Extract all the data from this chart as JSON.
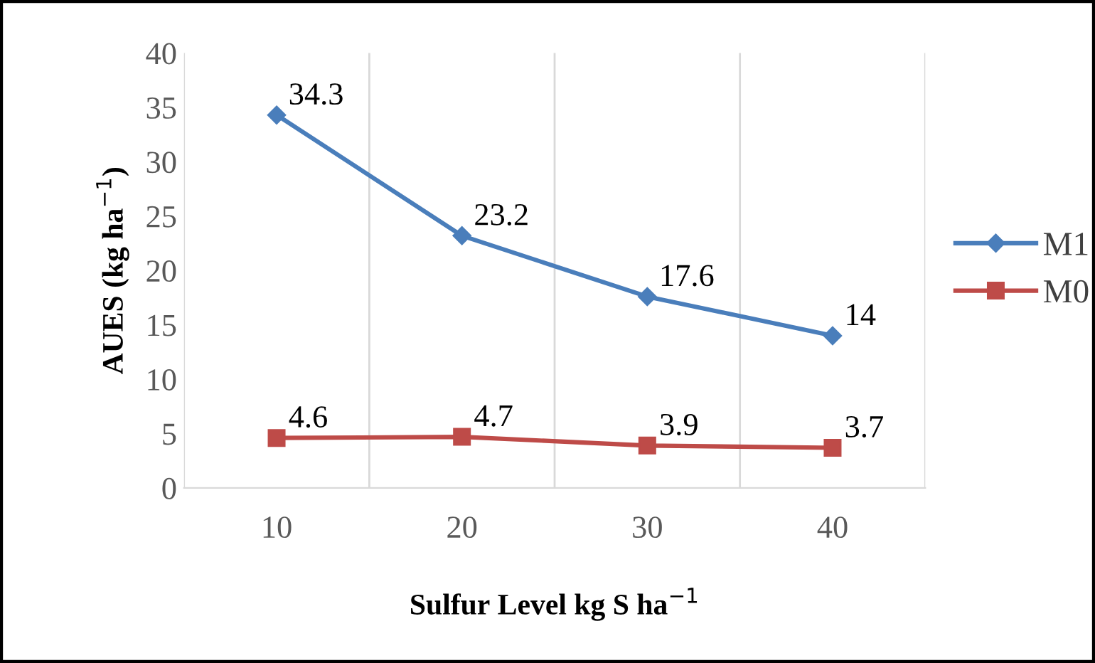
{
  "chart_data": {
    "type": "line",
    "xlabel": "Sulfur Level kg S ha$^{−1}$",
    "ylabel": "AUES (kg ha$^{−1}$)",
    "categories": [
      "10",
      "20",
      "30",
      "40"
    ],
    "series": [
      {
        "name": "M1",
        "color": "#4a7ebb",
        "marker": "diamond",
        "values": [
          34.3,
          23.2,
          17.6,
          14
        ]
      },
      {
        "name": "M0",
        "color": "#be4b48",
        "marker": "square",
        "values": [
          4.6,
          4.7,
          3.9,
          3.7
        ]
      }
    ],
    "ylim": [
      0,
      40
    ],
    "yticks": [
      0,
      5,
      10,
      15,
      20,
      25,
      30,
      35,
      40
    ],
    "grid": "x",
    "legend": "right",
    "data_labels": true,
    "line_style": "solid"
  }
}
